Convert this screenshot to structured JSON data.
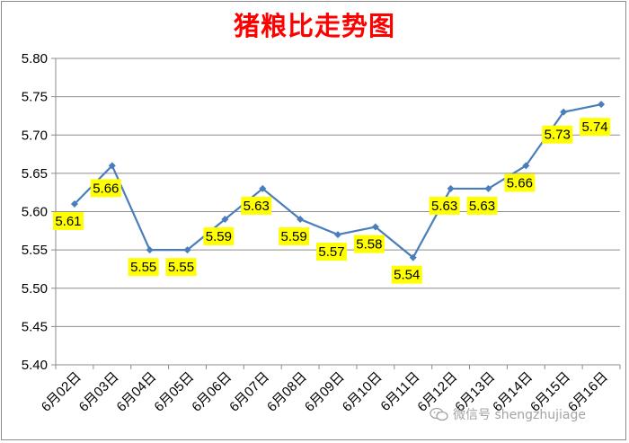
{
  "chart_data": {
    "type": "line",
    "title": "猪粮比走势图",
    "xlabel": "",
    "ylabel": "",
    "categories": [
      "6月02日",
      "6月03日",
      "6月04日",
      "6月05日",
      "6月06日",
      "6月07日",
      "6月08日",
      "6月09日",
      "6月10日",
      "6月11日",
      "6月12日",
      "6月13日",
      "6月14日",
      "6月15日",
      "6月16日"
    ],
    "series": [
      {
        "values": [
          5.61,
          5.66,
          5.55,
          5.55,
          5.59,
          5.63,
          5.59,
          5.57,
          5.58,
          5.54,
          5.63,
          5.63,
          5.66,
          5.73,
          5.74
        ]
      }
    ],
    "y_ticks": [
      "5.40",
      "5.45",
      "5.50",
      "5.55",
      "5.60",
      "5.65",
      "5.70",
      "5.75",
      "5.80"
    ],
    "ylim": [
      5.4,
      5.8
    ],
    "grid": "horizontal",
    "legend": "none",
    "line_color": "#4a7ebb",
    "label_bg_color": "#ffff00",
    "title_color": "#ff0000"
  },
  "watermark": {
    "text": "微信号 shengzhujiage",
    "icon": "wechat-icon"
  }
}
